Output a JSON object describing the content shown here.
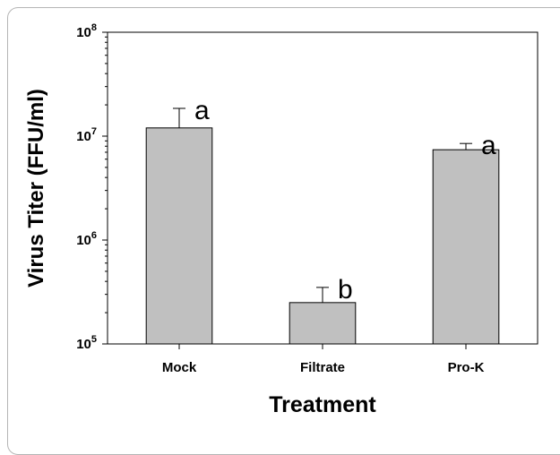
{
  "chart_data": {
    "type": "bar",
    "xlabel": "Treatment",
    "ylabel": "Virus Titer (FFU/ml)",
    "yscale": "log",
    "ylim": [
      100000,
      100000000
    ],
    "yticks": [
      {
        "value": 100000,
        "base": "10",
        "exp": "5"
      },
      {
        "value": 1000000,
        "base": "10",
        "exp": "6"
      },
      {
        "value": 10000000,
        "base": "10",
        "exp": "7"
      },
      {
        "value": 100000000,
        "base": "10",
        "exp": "8"
      }
    ],
    "categories": [
      "Mock",
      "Filtrate",
      "Pro-K"
    ],
    "values": [
      12000000,
      250000,
      7400000
    ],
    "error_upper": [
      18500000,
      350000,
      8500000
    ],
    "significance_letters": [
      "a",
      "b",
      "a"
    ],
    "grid": false,
    "colors": {
      "bar_fill": "#c0c0c0",
      "bar_stroke": "#000000",
      "axis": "#000000",
      "frame": "#b5b5b5"
    }
  }
}
